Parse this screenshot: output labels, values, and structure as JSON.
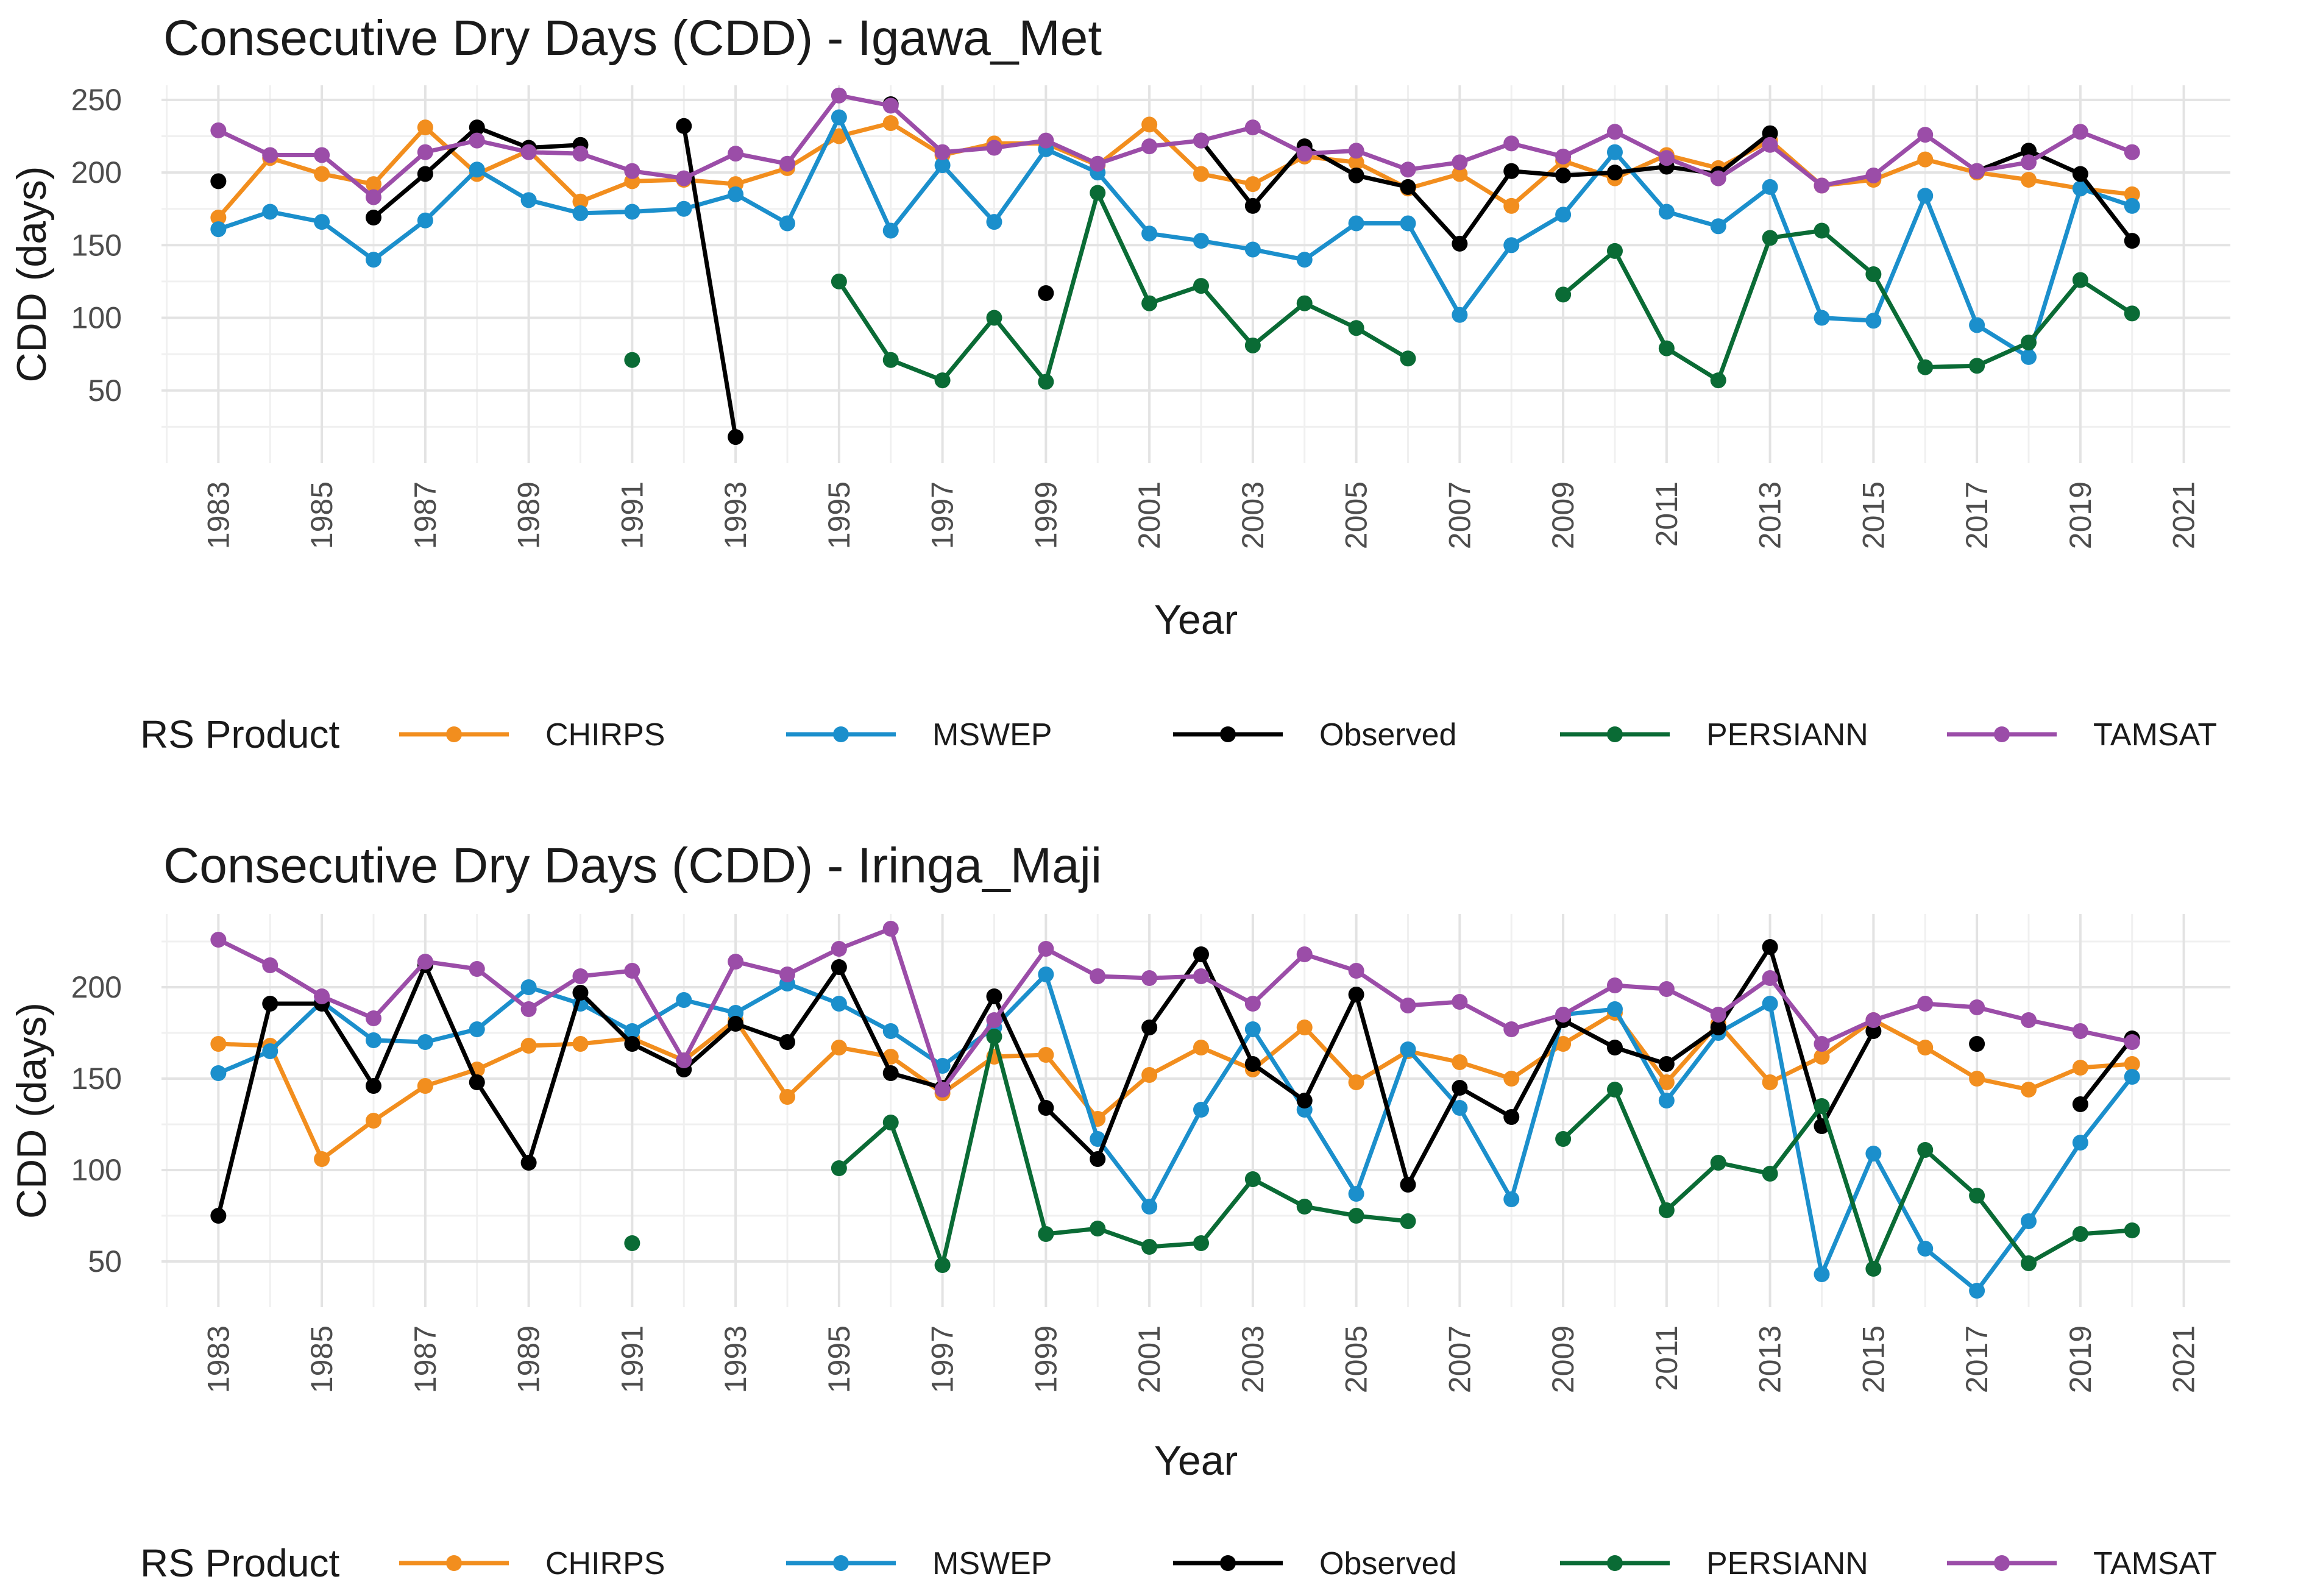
{
  "legend": {
    "title": "RS Product",
    "entries": [
      {
        "name": "CHIRPS",
        "color": "#F28E1E"
      },
      {
        "name": "MSWEP",
        "color": "#1B8FCC"
      },
      {
        "name": "Observed",
        "color": "#000000"
      },
      {
        "name": "PERSIANN",
        "color": "#0A6B35"
      },
      {
        "name": "TAMSAT",
        "color": "#9B4DA8"
      }
    ]
  },
  "chart_data": [
    {
      "type": "line",
      "title": "Consecutive Dry Days (CDD) - Igawa_Met",
      "xlabel": "Year",
      "ylabel": "CDD (days)",
      "xlim": [
        1981.9,
        2021.9
      ],
      "ylim": [
        0,
        260
      ],
      "xticks": [
        "1983",
        "1985",
        "1987",
        "1989",
        "1991",
        "1993",
        "1995",
        "1997",
        "1999",
        "2001",
        "2003",
        "2005",
        "2007",
        "2009",
        "2011",
        "2013",
        "2015",
        "2017",
        "2019",
        "2021"
      ],
      "yticks": [
        50,
        100,
        150,
        200,
        250
      ],
      "x": [
        1983,
        1984,
        1985,
        1986,
        1987,
        1988,
        1989,
        1990,
        1991,
        1992,
        1993,
        1994,
        1995,
        1996,
        1997,
        1998,
        1999,
        2000,
        2001,
        2002,
        2003,
        2004,
        2005,
        2006,
        2007,
        2008,
        2009,
        2010,
        2011,
        2012,
        2013,
        2014,
        2015,
        2016,
        2017,
        2018,
        2019,
        2020
      ],
      "series": [
        {
          "name": "CHIRPS",
          "values": [
            169,
            210,
            199,
            192,
            231,
            199,
            215,
            180,
            194,
            195,
            192,
            203,
            225,
            234,
            212,
            220,
            220,
            205,
            233,
            199,
            192,
            211,
            207,
            189,
            199,
            177,
            208,
            196,
            212,
            203,
            222,
            191,
            195,
            209,
            200,
            195,
            189,
            185
          ]
        },
        {
          "name": "MSWEP",
          "values": [
            161,
            173,
            166,
            140,
            167,
            202,
            181,
            172,
            173,
            175,
            185,
            165,
            238,
            160,
            205,
            166,
            216,
            200,
            158,
            153,
            147,
            140,
            165,
            165,
            102,
            150,
            171,
            214,
            173,
            163,
            190,
            100,
            98,
            184,
            95,
            73,
            189,
            177
          ]
        },
        {
          "name": "Observed",
          "values": [
            194,
            null,
            null,
            169,
            199,
            231,
            217,
            219,
            null,
            232,
            18,
            null,
            null,
            247,
            null,
            null,
            117,
            null,
            null,
            222,
            177,
            218,
            198,
            190,
            151,
            201,
            198,
            200,
            204,
            199,
            227,
            null,
            null,
            null,
            201,
            215,
            199,
            153
          ]
        },
        {
          "name": "PERSIANN",
          "values": [
            null,
            null,
            null,
            null,
            null,
            null,
            null,
            null,
            71,
            null,
            null,
            null,
            125,
            71,
            57,
            100,
            56,
            186,
            110,
            122,
            81,
            110,
            93,
            72,
            null,
            null,
            116,
            146,
            79,
            57,
            155,
            160,
            130,
            66,
            67,
            83,
            126,
            103
          ]
        },
        {
          "name": "TAMSAT",
          "values": [
            229,
            212,
            212,
            183,
            214,
            222,
            214,
            213,
            201,
            196,
            213,
            206,
            253,
            246,
            214,
            217,
            222,
            206,
            218,
            222,
            231,
            213,
            215,
            202,
            207,
            220,
            211,
            228,
            210,
            196,
            219,
            191,
            198,
            226,
            201,
            207,
            228,
            214
          ]
        }
      ]
    },
    {
      "type": "line",
      "title": "Consecutive Dry Days (CDD) - Iringa_Maji",
      "xlabel": "Year",
      "ylabel": "CDD (days)",
      "xlim": [
        1981.9,
        2021.9
      ],
      "ylim": [
        25,
        240
      ],
      "xticks": [
        "1983",
        "1985",
        "1987",
        "1989",
        "1991",
        "1993",
        "1995",
        "1997",
        "1999",
        "2001",
        "2003",
        "2005",
        "2007",
        "2009",
        "2011",
        "2013",
        "2015",
        "2017",
        "2019",
        "2021"
      ],
      "yticks": [
        50,
        100,
        150,
        200
      ],
      "x": [
        1983,
        1984,
        1985,
        1986,
        1987,
        1988,
        1989,
        1990,
        1991,
        1992,
        1993,
        1994,
        1995,
        1996,
        1997,
        1998,
        1999,
        2000,
        2001,
        2002,
        2003,
        2004,
        2005,
        2006,
        2007,
        2008,
        2009,
        2010,
        2011,
        2012,
        2013,
        2014,
        2015,
        2016,
        2017,
        2018,
        2019,
        2020
      ],
      "series": [
        {
          "name": "CHIRPS",
          "values": [
            169,
            168,
            106,
            127,
            146,
            155,
            168,
            169,
            172,
            160,
            182,
            140,
            167,
            162,
            142,
            162,
            163,
            128,
            152,
            167,
            155,
            178,
            148,
            165,
            159,
            150,
            169,
            186,
            148,
            180,
            148,
            162,
            182,
            167,
            150,
            144,
            156,
            158
          ]
        },
        {
          "name": "MSWEP",
          "values": [
            153,
            165,
            192,
            171,
            170,
            177,
            200,
            191,
            176,
            193,
            186,
            202,
            191,
            176,
            157,
            178,
            207,
            117,
            80,
            133,
            177,
            133,
            87,
            166,
            134,
            84,
            185,
            188,
            138,
            175,
            191,
            43,
            109,
            57,
            34,
            72,
            115,
            151
          ]
        },
        {
          "name": "Observed",
          "values": [
            75,
            191,
            191,
            146,
            212,
            148,
            104,
            197,
            169,
            155,
            180,
            170,
            211,
            153,
            145,
            195,
            134,
            106,
            178,
            218,
            158,
            138,
            196,
            92,
            145,
            129,
            182,
            167,
            158,
            178,
            222,
            124,
            176,
            null,
            169,
            null,
            136,
            172
          ]
        },
        {
          "name": "PERSIANN",
          "values": [
            null,
            null,
            null,
            null,
            null,
            null,
            null,
            null,
            60,
            null,
            null,
            null,
            101,
            126,
            48,
            173,
            65,
            68,
            58,
            60,
            95,
            80,
            75,
            72,
            null,
            null,
            117,
            144,
            78,
            104,
            98,
            135,
            46,
            111,
            86,
            49,
            65,
            67
          ]
        },
        {
          "name": "TAMSAT",
          "values": [
            226,
            212,
            195,
            183,
            214,
            210,
            188,
            206,
            209,
            160,
            214,
            207,
            221,
            232,
            144,
            182,
            221,
            206,
            205,
            206,
            191,
            218,
            209,
            190,
            192,
            177,
            185,
            201,
            199,
            185,
            205,
            169,
            182,
            191,
            189,
            182,
            176,
            170
          ]
        }
      ]
    }
  ]
}
